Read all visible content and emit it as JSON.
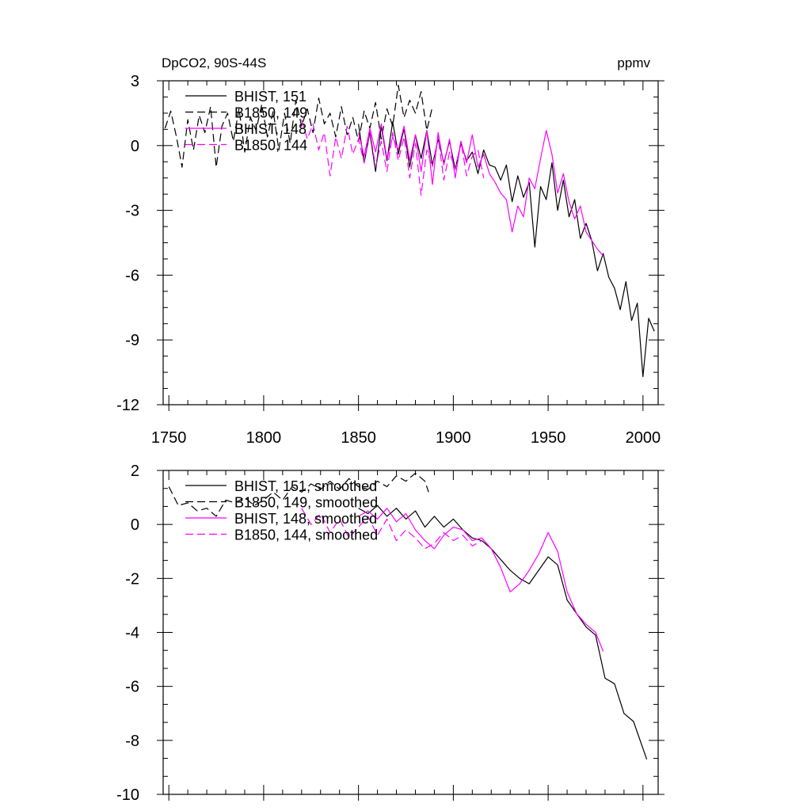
{
  "chart_data": [
    {
      "type": "line",
      "title": "DpCO2, 90S-44S",
      "units": "ppmv",
      "xlim": [
        1747,
        2008
      ],
      "ylim": [
        -12,
        3
      ],
      "xticks": [
        1750,
        1800,
        1850,
        1900,
        1950,
        2000
      ],
      "yticks": [
        3,
        0,
        -3,
        -6,
        -9,
        -12
      ],
      "grid": false,
      "legend_position": "top-left",
      "series": [
        {
          "name": "BHIST, 151",
          "color": "#000000",
          "dash": "solid",
          "x": [
            1850,
            1853,
            1856,
            1859,
            1862,
            1865,
            1868,
            1871,
            1874,
            1877,
            1880,
            1883,
            1886,
            1889,
            1892,
            1895,
            1898,
            1901,
            1904,
            1907,
            1910,
            1913,
            1916,
            1919,
            1922,
            1925,
            1928,
            1931,
            1934,
            1937,
            1940,
            1943,
            1946,
            1949,
            1952,
            1955,
            1958,
            1961,
            1964,
            1967,
            1970,
            1973,
            1976,
            1979,
            1982,
            1985,
            1988,
            1991,
            1994,
            1997,
            2000,
            2003,
            2006
          ],
          "y": [
            1.0,
            -0.8,
            0.6,
            -1.2,
            0.9,
            -0.7,
            1.1,
            -0.4,
            0.8,
            -1.0,
            0.5,
            -0.6,
            0.7,
            -0.9,
            0.3,
            -0.8,
            0.2,
            -1.1,
            0.1,
            -0.7,
            -0.3,
            -1.3,
            -0.2,
            -0.9,
            -1.0,
            -1.6,
            -0.9,
            -2.6,
            -1.4,
            -2.4,
            -1.7,
            -4.7,
            -1.9,
            -2.5,
            -0.8,
            -3.0,
            -1.6,
            -3.3,
            -2.5,
            -4.3,
            -3.6,
            -4.4,
            -5.8,
            -5.0,
            -6.1,
            -6.6,
            -7.6,
            -6.3,
            -8.1,
            -7.3,
            -10.7,
            -8.0,
            -8.6
          ]
        },
        {
          "name": "B1850, 149",
          "color": "#000000",
          "dash": "dashed",
          "x": [
            1748,
            1751,
            1754,
            1757,
            1760,
            1763,
            1766,
            1769,
            1772,
            1775,
            1778,
            1781,
            1784,
            1787,
            1790,
            1793,
            1796,
            1799,
            1802,
            1805,
            1808,
            1811,
            1814,
            1817,
            1820,
            1823,
            1826,
            1829,
            1832,
            1835,
            1838,
            1841,
            1844,
            1847,
            1850,
            1853,
            1856,
            1859,
            1862,
            1865,
            1868,
            1871,
            1874,
            1877,
            1880,
            1883,
            1886,
            1889
          ],
          "y": [
            0.8,
            1.6,
            0.4,
            -1.0,
            1.2,
            -0.2,
            1.4,
            0.6,
            1.8,
            -1.0,
            0.9,
            1.5,
            0.2,
            1.7,
            -0.3,
            1.3,
            0.7,
            1.9,
            0.4,
            1.6,
            -0.2,
            1.5,
            0.1,
            2.1,
            0.9,
            1.7,
            0.6,
            2.2,
            1.0,
            1.5,
            0.4,
            1.8,
            0.5,
            1.3,
            0.2,
            1.6,
            0.8,
            2.0,
            0.3,
            1.7,
            0.9,
            2.8,
            1.3,
            2.1,
            1.5,
            2.5,
            0.7,
            1.8
          ]
        },
        {
          "name": "BHIST, 148",
          "color": "#ff00ff",
          "dash": "solid",
          "x": [
            1850,
            1853,
            1856,
            1859,
            1862,
            1865,
            1868,
            1871,
            1874,
            1877,
            1880,
            1883,
            1886,
            1889,
            1892,
            1895,
            1898,
            1901,
            1904,
            1907,
            1910,
            1913,
            1916,
            1919,
            1922,
            1925,
            1928,
            1931,
            1934,
            1937,
            1940,
            1943,
            1946,
            1949,
            1952,
            1955,
            1958,
            1961,
            1964,
            1967,
            1970,
            1973,
            1976,
            1979
          ],
          "y": [
            0.6,
            -0.5,
            0.8,
            -0.3,
            1.0,
            -0.6,
            0.4,
            -0.2,
            0.9,
            -0.7,
            0.5,
            -1.2,
            0.7,
            -1.8,
            0.6,
            -0.9,
            0.3,
            -1.5,
            0.2,
            -0.8,
            0.5,
            -1.0,
            -0.4,
            -1.3,
            -1.7,
            -2.2,
            -2.5,
            -4.0,
            -2.8,
            -3.3,
            -1.5,
            -2.0,
            -0.6,
            0.7,
            -0.4,
            -2.2,
            -1.3,
            -2.6,
            -3.4,
            -2.8,
            -4.0,
            -4.4,
            -4.8,
            -5.1
          ]
        },
        {
          "name": "B1850, 144",
          "color": "#ff00ff",
          "dash": "dashed",
          "x": [
            1820,
            1823,
            1826,
            1829,
            1832,
            1835,
            1838,
            1841,
            1844,
            1847,
            1850,
            1853,
            1856,
            1859,
            1862,
            1865,
            1868,
            1871,
            1874,
            1877,
            1880,
            1883,
            1886,
            1889,
            1892,
            1895,
            1898,
            1901,
            1904,
            1907,
            1910,
            1913,
            1916
          ],
          "y": [
            1.2,
            0.3,
            1.0,
            -0.2,
            0.6,
            -1.4,
            0.4,
            -0.6,
            0.9,
            -0.4,
            0.3,
            -0.8,
            0.7,
            -1.0,
            0.2,
            -1.2,
            0.6,
            -0.7,
            0.4,
            -1.5,
            0.1,
            -2.3,
            -0.2,
            -1.0,
            0.4,
            -1.6,
            -0.3,
            -1.1,
            0.2,
            -1.4,
            -0.5,
            -0.2,
            -1.5
          ]
        }
      ]
    },
    {
      "type": "line",
      "title": "",
      "xlim": [
        1747,
        2008
      ],
      "ylim": [
        -10,
        2
      ],
      "yticks": [
        2,
        0,
        -2,
        -4,
        -6,
        -8,
        -10
      ],
      "grid": false,
      "legend_position": "top-left",
      "series": [
        {
          "name": "BHIST, 151, smoothed",
          "color": "#000000",
          "dash": "solid",
          "x": [
            1850,
            1855,
            1860,
            1865,
            1870,
            1875,
            1880,
            1885,
            1890,
            1895,
            1900,
            1905,
            1910,
            1915,
            1920,
            1925,
            1930,
            1935,
            1940,
            1945,
            1950,
            1955,
            1960,
            1965,
            1970,
            1975,
            1980,
            1985,
            1990,
            1995,
            2000,
            2002
          ],
          "y": [
            0.6,
            0.4,
            0.7,
            0.3,
            0.6,
            0.2,
            0.5,
            -0.1,
            0.3,
            -0.1,
            0.2,
            -0.2,
            -0.5,
            -0.6,
            -0.9,
            -1.3,
            -1.7,
            -2.0,
            -2.2,
            -1.7,
            -1.2,
            -1.5,
            -2.8,
            -3.3,
            -3.8,
            -4.1,
            -5.7,
            -5.9,
            -7.0,
            -7.3,
            -8.3,
            -8.7
          ]
        },
        {
          "name": "B1850, 149, smoothed",
          "color": "#000000",
          "dash": "dashed",
          "x": [
            1750,
            1755,
            1760,
            1765,
            1770,
            1775,
            1780,
            1785,
            1790,
            1795,
            1800,
            1805,
            1810,
            1815,
            1820,
            1825,
            1830,
            1835,
            1840,
            1845,
            1850,
            1855,
            1860,
            1865,
            1870,
            1875,
            1880,
            1885,
            1887
          ],
          "y": [
            1.4,
            0.7,
            0.8,
            0.5,
            0.6,
            0.3,
            0.9,
            0.8,
            1.0,
            0.7,
            0.9,
            1.2,
            0.9,
            1.4,
            1.2,
            1.5,
            1.3,
            1.6,
            1.3,
            1.7,
            1.4,
            1.3,
            1.6,
            1.4,
            1.8,
            1.6,
            1.9,
            1.6,
            1.2
          ]
        },
        {
          "name": "BHIST, 148, smoothed",
          "color": "#ff00ff",
          "dash": "solid",
          "x": [
            1850,
            1855,
            1860,
            1865,
            1870,
            1875,
            1880,
            1885,
            1890,
            1895,
            1900,
            1905,
            1910,
            1915,
            1920,
            1925,
            1930,
            1935,
            1940,
            1945,
            1950,
            1955,
            1960,
            1965,
            1970,
            1975,
            1979
          ],
          "y": [
            0.3,
            0.5,
            0.2,
            0.6,
            0.1,
            0.4,
            -0.2,
            -0.6,
            -0.9,
            -0.4,
            -0.1,
            -0.2,
            -0.6,
            -0.5,
            -0.9,
            -1.6,
            -2.5,
            -2.2,
            -1.7,
            -1.1,
            -0.3,
            -1.0,
            -2.5,
            -3.3,
            -3.7,
            -4.0,
            -4.7
          ]
        },
        {
          "name": "B1850, 144, smoothed",
          "color": "#ff00ff",
          "dash": "dashed",
          "x": [
            1820,
            1825,
            1830,
            1835,
            1840,
            1845,
            1850,
            1855,
            1860,
            1865,
            1870,
            1875,
            1880,
            1885,
            1890,
            1895,
            1900,
            1905,
            1910,
            1915
          ],
          "y": [
            0.6,
            0.0,
            0.4,
            -0.3,
            0.2,
            -0.5,
            -0.1,
            0.3,
            -0.4,
            0.2,
            -0.6,
            -0.2,
            -0.5,
            -0.9,
            -0.7,
            -0.3,
            -0.6,
            -0.4,
            -0.8,
            -0.6
          ]
        }
      ]
    }
  ]
}
